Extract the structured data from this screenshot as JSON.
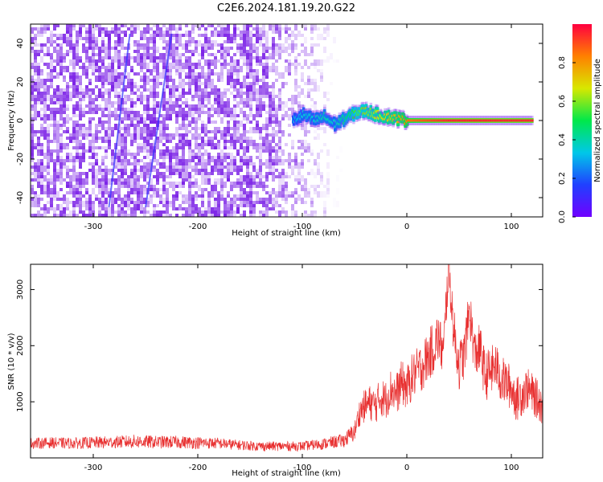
{
  "title": "C2E6.2024.181.19.20.G22",
  "colors": {
    "snr_line": "#e83030",
    "spectrogram_noise": "#7a1fe6",
    "centerline": "#e8202a",
    "colorbar": [
      "#7000ff",
      "#2040ff",
      "#00c8e8",
      "#00e84a",
      "#d8e800",
      "#ff8000",
      "#ff0040"
    ]
  },
  "chart_data": [
    {
      "type": "heatmap",
      "title": "C2E6.2024.181.19.20.G22",
      "xlabel": "Height of straight line (km)",
      "ylabel": "Frequency (Hz)",
      "xlim": [
        -360,
        130
      ],
      "ylim": [
        -50,
        50
      ],
      "xticks": [
        -300,
        -200,
        -100,
        0,
        100
      ],
      "yticks": [
        -40,
        -20,
        0,
        20,
        40
      ],
      "colorbar": {
        "label": "Normalized spectral amplitude",
        "range": [
          0.0,
          1.0
        ],
        "ticks": [
          0.0,
          0.2,
          0.4,
          0.6,
          0.8
        ]
      },
      "regions": [
        {
          "x": [
            -360,
            -110
          ],
          "description": "broadband noise, amplitude 0.1-0.3"
        },
        {
          "x": [
            -110,
            130
          ],
          "frequency_hz": 0,
          "description": "narrow carrier near 0 Hz, amplitude rising to 1.0"
        }
      ],
      "carrier_track": {
        "x": [
          -110,
          -100,
          -90,
          -80,
          -70,
          -60,
          -50,
          -40,
          -30,
          -20,
          -10,
          0,
          20,
          40,
          60,
          80,
          100,
          120
        ],
        "frequency_hz": [
          0,
          3,
          0,
          2,
          -2,
          1,
          4,
          5,
          3,
          2,
          1,
          0,
          0,
          0,
          0,
          0,
          0,
          0
        ],
        "amplitude": [
          0.3,
          0.35,
          0.35,
          0.4,
          0.35,
          0.45,
          0.55,
          0.6,
          0.65,
          0.7,
          0.75,
          0.85,
          0.9,
          0.95,
          0.95,
          0.95,
          0.95,
          0.95
        ]
      },
      "grid": false
    },
    {
      "type": "line",
      "xlabel": "Height of straight line (km)",
      "ylabel": "SNR (10 * v/v)",
      "xlim": [
        -360,
        130
      ],
      "ylim": [
        0,
        3450
      ],
      "xticks": [
        -300,
        -200,
        -100,
        0,
        100
      ],
      "yticks": [
        1000,
        2000,
        3000
      ],
      "grid": false,
      "series": [
        {
          "x": [
            -360,
            -340,
            -320,
            -300,
            -280,
            -260,
            -240,
            -220,
            -200,
            -180,
            -160,
            -140,
            -120,
            -100,
            -80,
            -60,
            -50,
            -45,
            -40,
            -35,
            -30,
            -25,
            -20,
            -15,
            -10,
            -5,
            0,
            5,
            10,
            15,
            20,
            25,
            30,
            35,
            38,
            40,
            45,
            50,
            55,
            60,
            65,
            70,
            75,
            80,
            85,
            90,
            95,
            100,
            105,
            110,
            115,
            120,
            125,
            130
          ],
          "values": [
            250,
            260,
            250,
            260,
            270,
            280,
            270,
            270,
            260,
            250,
            220,
            200,
            200,
            200,
            240,
            300,
            450,
            800,
            900,
            950,
            900,
            1050,
            1000,
            1200,
            1100,
            1300,
            1200,
            1400,
            1500,
            1600,
            1750,
            1900,
            2100,
            1800,
            2800,
            3400,
            2200,
            1600,
            1800,
            2600,
            1800,
            1900,
            1400,
            1500,
            1600,
            1350,
            1300,
            1200,
            1000,
            1100,
            1200,
            1100,
            1000,
            900
          ],
          "noise_amplitude": [
            200,
            200,
            200,
            220,
            220,
            250,
            230,
            230,
            220,
            200,
            180,
            170,
            170,
            170,
            200,
            250,
            350,
            500,
            600,
            650,
            650,
            700,
            700,
            750,
            750,
            800,
            800,
            850,
            850,
            900,
            900,
            950,
            950,
            900,
            900,
            900,
            900,
            900,
            900,
            900,
            900,
            900,
            900,
            900,
            850,
            850,
            850,
            800,
            800,
            800,
            750,
            750,
            700,
            700
          ]
        }
      ]
    }
  ]
}
